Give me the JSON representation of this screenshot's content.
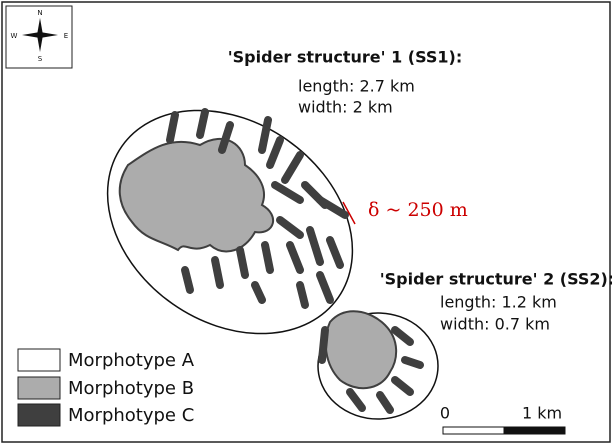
{
  "compass": {
    "north": "N",
    "south": "S",
    "west": "W",
    "east": "E"
  },
  "ss1": {
    "title": "'Spider structure' 1 (SS1):",
    "length": "length: 2.7 km",
    "width": "width: 2 km"
  },
  "spacing": "δ ~ 250 m",
  "ss2": {
    "title": "'Spider structure' 2 (SS2):",
    "length": "length: 1.2 km",
    "width": "width: 0.7 km"
  },
  "legend": [
    "Morphotype A",
    "Morphotype B",
    "Morphotype C"
  ],
  "scale_bar": {
    "start": "0",
    "end": "1 km"
  }
}
